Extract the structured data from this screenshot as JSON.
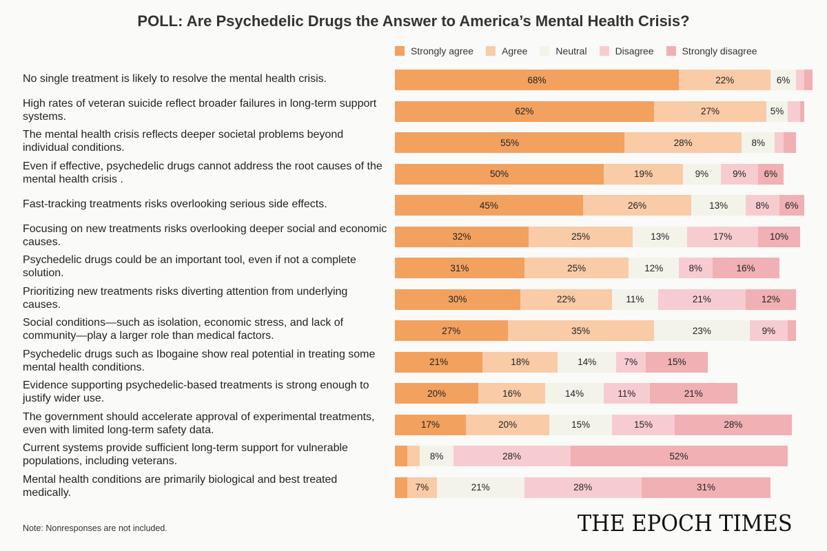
{
  "title": "POLL: Are Psychedelic Drugs the Answer to America’s Mental Health Crisis?",
  "note": "Note: Nonresponses are not included.",
  "logo": "THE EPOCH TIMES",
  "chart_data": {
    "type": "bar",
    "orientation": "horizontal",
    "stacked": true,
    "xlim": [
      0,
      100
    ],
    "legend_position": "top",
    "categories": [
      "No single treatment is likely to resolve the mental health crisis.",
      "High rates of veteran suicide reflect broader failures in long-term support systems.",
      "The mental health crisis reflects deeper societal problems beyond individual conditions.",
      "Even if effective, psychedelic drugs cannot address the root causes of the mental health crisis .",
      "Fast-tracking treatments risks overlooking serious side effects.",
      "Focusing on new treatments risks overlooking deeper social and economic causes.",
      "Psychedelic drugs could be an important tool, even if not a complete solution.",
      "Prioritizing new treatments risks diverting attention from underlying causes.",
      "Social conditions—such as isolation, economic stress, and lack of community—play a larger role than medical factors.",
      "Psychedelic drugs such as Ibogaine show real potential in treating some mental health conditions.",
      "Evidence supporting psychedelic-based treatments is strong enough to justify wider use.",
      "The government should accelerate approval of experimental treatments, even with limited long-term safety data.",
      "Current systems provide sufficient long-term support for vulnerable populations, including veterans.",
      "Mental health conditions are primarily biological and best treated medically."
    ],
    "series": [
      {
        "name": "Strongly agree",
        "color": "#f2a15f",
        "values": [
          68,
          62,
          55,
          50,
          45,
          32,
          31,
          30,
          27,
          21,
          20,
          17,
          3,
          3
        ],
        "labels": [
          "68%",
          "62%",
          "55%",
          "50%",
          "45%",
          "32%",
          "31%",
          "30%",
          "27%",
          "21%",
          "20%",
          "17%",
          "",
          ""
        ]
      },
      {
        "name": "Agree",
        "color": "#f9cba6",
        "values": [
          22,
          27,
          28,
          19,
          26,
          25,
          25,
          22,
          35,
          18,
          16,
          20,
          3,
          7
        ],
        "labels": [
          "22%",
          "27%",
          "28%",
          "19%",
          "26%",
          "25%",
          "25%",
          "22%",
          "35%",
          "18%",
          "16%",
          "20%",
          "",
          "7%"
        ]
      },
      {
        "name": "Neutral",
        "color": "#f3f3ea",
        "values": [
          6,
          5,
          8,
          9,
          13,
          13,
          12,
          11,
          23,
          14,
          14,
          15,
          8,
          21
        ],
        "labels": [
          "6%",
          "5%",
          "8%",
          "9%",
          "13%",
          "13%",
          "12%",
          "11%",
          "23%",
          "14%",
          "14%",
          "15%",
          "8%",
          "21%"
        ]
      },
      {
        "name": "Disagree",
        "color": "#f7ccd0",
        "values": [
          2,
          3,
          2,
          9,
          8,
          17,
          8,
          21,
          9,
          7,
          11,
          15,
          28,
          28
        ],
        "labels": [
          "",
          "",
          "",
          "9%",
          "8%",
          "17%",
          "8%",
          "21%",
          "9%",
          "7%",
          "11%",
          "15%",
          "28%",
          "28%"
        ]
      },
      {
        "name": "Strongly disagree",
        "color": "#f0b0b4",
        "values": [
          2,
          1,
          3,
          6,
          6,
          10,
          16,
          12,
          2,
          15,
          21,
          28,
          52,
          31
        ],
        "labels": [
          "",
          "",
          "",
          "6%",
          "6%",
          "10%",
          "16%",
          "12%",
          "",
          "15%",
          "21%",
          "28%",
          "52%",
          "31%"
        ]
      }
    ]
  }
}
